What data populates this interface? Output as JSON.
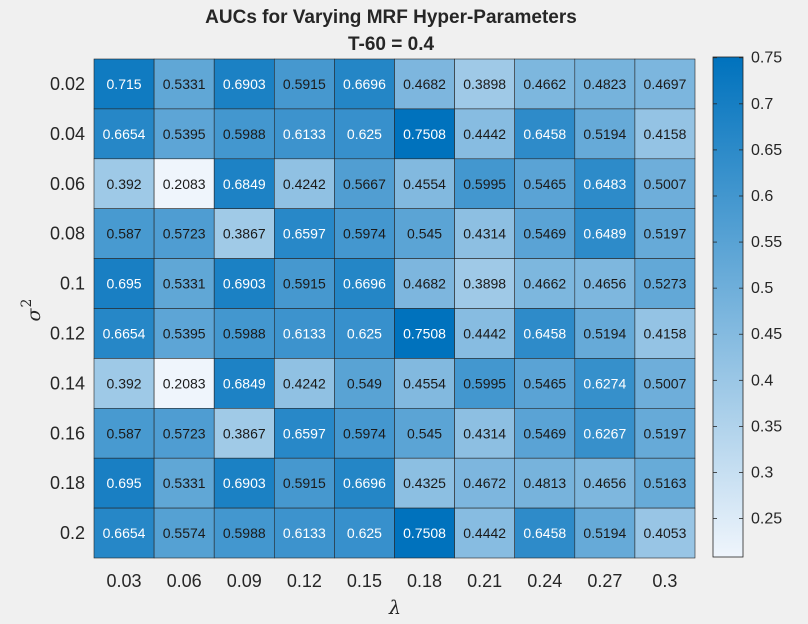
{
  "chart_data": {
    "type": "heatmap",
    "title": "AUCs for Varying MRF Hyper-Parameters",
    "subtitle": "T-60 = 0.4",
    "xlabel": "λ",
    "ylabel": "σ",
    "ylabel_superscript": "2",
    "x_categories": [
      "0.03",
      "0.06",
      "0.09",
      "0.12",
      "0.15",
      "0.18",
      "0.21",
      "0.24",
      "0.27",
      "0.3"
    ],
    "y_categories": [
      "0.02",
      "0.04",
      "0.06",
      "0.08",
      "0.1",
      "0.12",
      "0.14",
      "0.16",
      "0.18",
      "0.2"
    ],
    "values": [
      [
        0.715,
        0.5331,
        0.6903,
        0.5915,
        0.6696,
        0.4682,
        0.3898,
        0.4662,
        0.4823,
        0.4697
      ],
      [
        0.6654,
        0.5395,
        0.5988,
        0.6133,
        0.625,
        0.7508,
        0.4442,
        0.6458,
        0.5194,
        0.4158
      ],
      [
        0.392,
        0.2083,
        0.6849,
        0.4242,
        0.5667,
        0.4554,
        0.5995,
        0.5465,
        0.6483,
        0.5007
      ],
      [
        0.587,
        0.5723,
        0.3867,
        0.6597,
        0.5974,
        0.545,
        0.4314,
        0.5469,
        0.6489,
        0.5197
      ],
      [
        0.695,
        0.5331,
        0.6903,
        0.5915,
        0.6696,
        0.4682,
        0.3898,
        0.4662,
        0.4656,
        0.5273
      ],
      [
        0.6654,
        0.5395,
        0.5988,
        0.6133,
        0.625,
        0.7508,
        0.4442,
        0.6458,
        0.5194,
        0.4158
      ],
      [
        0.392,
        0.2083,
        0.6849,
        0.4242,
        0.549,
        0.4554,
        0.5995,
        0.5465,
        0.6274,
        0.5007
      ],
      [
        0.587,
        0.5723,
        0.3867,
        0.6597,
        0.5974,
        0.545,
        0.4314,
        0.5469,
        0.6267,
        0.5197
      ],
      [
        0.695,
        0.5331,
        0.6903,
        0.5915,
        0.6696,
        0.4325,
        0.4672,
        0.4813,
        0.4656,
        0.5163
      ],
      [
        0.6654,
        0.5574,
        0.5988,
        0.6133,
        0.625,
        0.7508,
        0.4442,
        0.6458,
        0.5194,
        0.4053
      ]
    ],
    "colorbar": {
      "min": 0.2083,
      "max": 0.7508,
      "ticks": [
        "0.25",
        "0.3",
        "0.35",
        "0.4",
        "0.45",
        "0.5",
        "0.55",
        "0.6",
        "0.65",
        "0.7",
        "0.75"
      ],
      "colormap": [
        "#eff5fc",
        "#0072bd"
      ]
    },
    "label_threshold": 0.6,
    "legend_position": "right",
    "grid": false
  }
}
